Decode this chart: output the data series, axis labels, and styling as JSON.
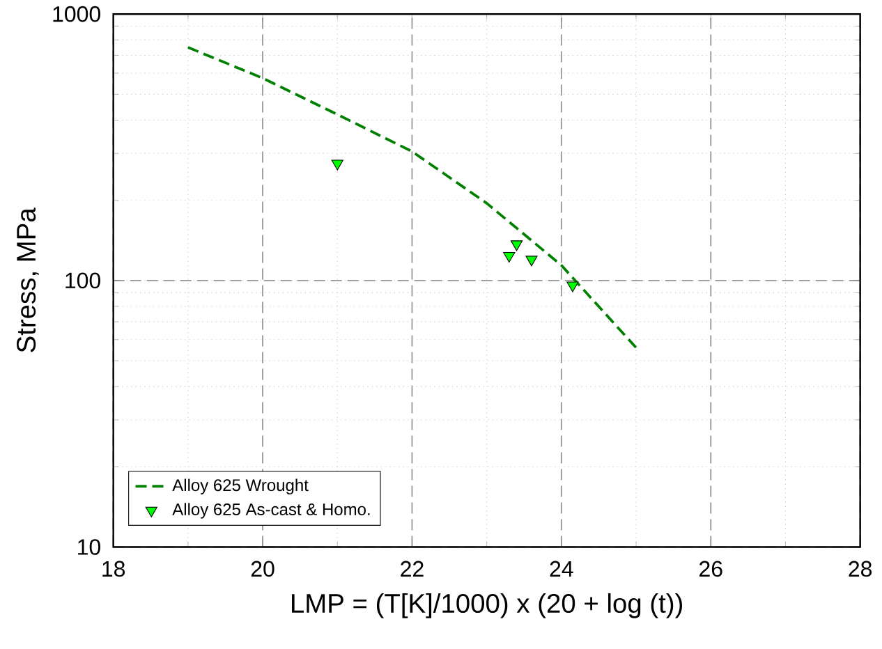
{
  "chart_data": {
    "type": "line",
    "xlabel": "LMP = (T[K]/1000) x (20 + log (t))",
    "ylabel": "Stress, MPa",
    "xlim": [
      18,
      28
    ],
    "xticks": [
      18,
      20,
      22,
      24,
      26,
      28
    ],
    "ylim": [
      10,
      1000
    ],
    "yticks": [
      10,
      100,
      1000
    ],
    "log": "y",
    "grid": true,
    "legend": "bottom left",
    "series": [
      {
        "name": "Alloy 625 Wrought",
        "line_style": "dashed",
        "marker": "none",
        "color": "#008000",
        "x": [
          19,
          20,
          21,
          22,
          23,
          24,
          25
        ],
        "values": [
          750,
          575,
          420,
          305,
          195,
          114,
          56
        ]
      },
      {
        "name": "Alloy 625 As-cast & Homo.",
        "type": "scatter",
        "marker": "triangle",
        "color": "#00ff00",
        "x": [
          21,
          23.3,
          23.4,
          23.6,
          24.15
        ],
        "values": [
          275,
          124,
          137,
          120,
          96
        ]
      }
    ]
  }
}
